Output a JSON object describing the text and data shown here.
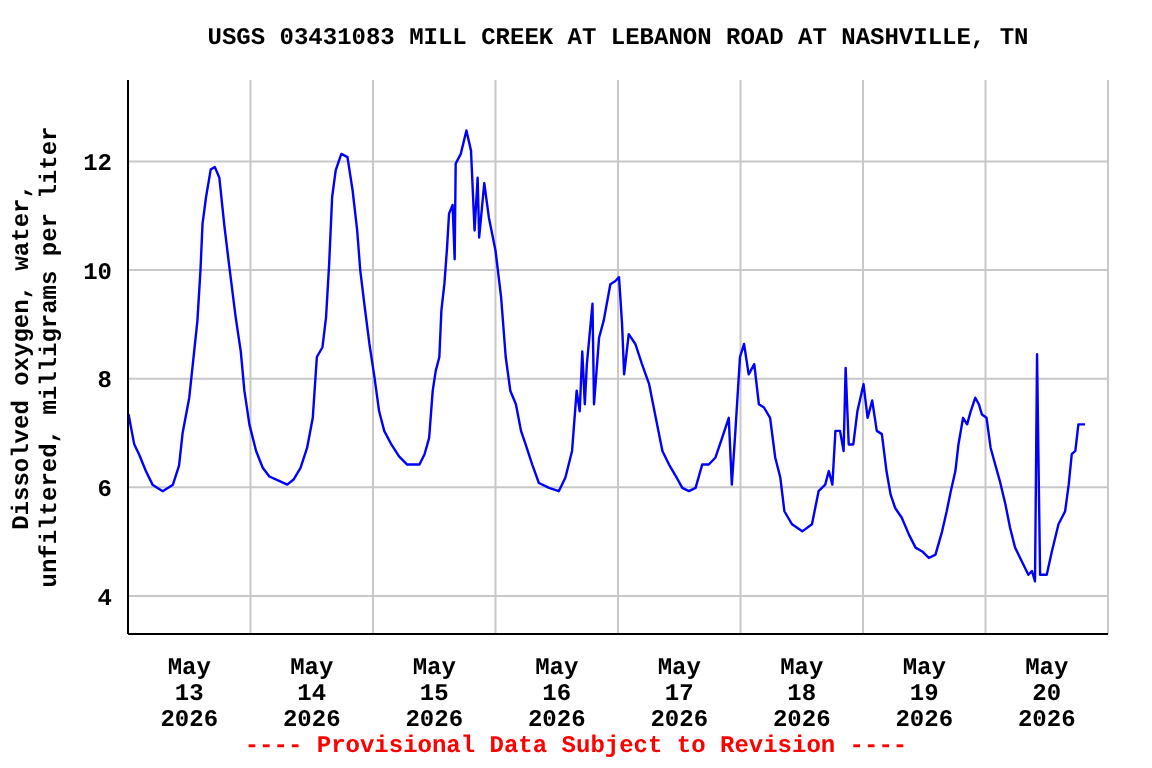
{
  "chart_data": {
    "type": "line",
    "title": "USGS 03431083 MILL CREEK AT LEBANON ROAD AT NASHVILLE, TN",
    "ylabel": "Dissolved oxygen, water, unfiltered, milligrams per liter",
    "annotations": [
      "---- Provisional Data Subject to Revision ----"
    ],
    "x": [
      "2026-05-13T00:06",
      "2026-05-13T01:12",
      "2026-05-13T02:12",
      "2026-05-13T03:30",
      "2026-05-13T04:48",
      "2026-05-13T06:48",
      "2026-05-13T08:48",
      "2026-05-13T10:00",
      "2026-05-13T10:42",
      "2026-05-13T12:00",
      "2026-05-13T12:42",
      "2026-05-13T13:36",
      "2026-05-13T14:12",
      "2026-05-13T14:36",
      "2026-05-13T15:18",
      "2026-05-13T16:12",
      "2026-05-13T17:00",
      "2026-05-13T17:54",
      "2026-05-13T18:54",
      "2026-05-13T19:48",
      "2026-05-13T21:06",
      "2026-05-13T22:06",
      "2026-05-13T22:48",
      "2026-05-13T23:48",
      "2026-05-14T01:06",
      "2026-05-14T02:24",
      "2026-05-14T03:42",
      "2026-05-14T05:36",
      "2026-05-14T07:12",
      "2026-05-14T08:30",
      "2026-05-14T09:48",
      "2026-05-14T11:06",
      "2026-05-14T12:12",
      "2026-05-14T13:00",
      "2026-05-14T14:06",
      "2026-05-14T14:48",
      "2026-05-14T15:24",
      "2026-05-14T16:00",
      "2026-05-14T16:42",
      "2026-05-14T17:48",
      "2026-05-14T19:00",
      "2026-05-14T20:00",
      "2026-05-14T20:54",
      "2026-05-14T21:30",
      "2026-05-14T22:18",
      "2026-05-14T23:18",
      "2026-05-15T00:18",
      "2026-05-15T01:12",
      "2026-05-15T02:12",
      "2026-05-15T03:36",
      "2026-05-15T05:06",
      "2026-05-15T06:42",
      "2026-05-15T09:06",
      "2026-05-15T10:06",
      "2026-05-15T11:00",
      "2026-05-15T11:42",
      "2026-05-15T12:18",
      "2026-05-15T13:00",
      "2026-05-15T13:24",
      "2026-05-15T14:00",
      "2026-05-15T14:30",
      "2026-05-15T14:54",
      "2026-05-15T15:36",
      "2026-05-15T16:00",
      "2026-05-15T16:12",
      "2026-05-15T17:12",
      "2026-05-15T18:18",
      "2026-05-15T19:12",
      "2026-05-15T19:54",
      "2026-05-15T20:30",
      "2026-05-15T20:48",
      "2026-05-15T21:48",
      "2026-05-15T22:42",
      "2026-05-16T00:00",
      "2026-05-16T01:06",
      "2026-05-16T02:00",
      "2026-05-16T02:54",
      "2026-05-16T04:00",
      "2026-05-16T05:00",
      "2026-05-16T05:54",
      "2026-05-16T07:12",
      "2026-05-16T08:30",
      "2026-05-16T10:30",
      "2026-05-16T12:24",
      "2026-05-16T13:42",
      "2026-05-16T15:00",
      "2026-05-16T15:54",
      "2026-05-16T16:30",
      "2026-05-16T17:00",
      "2026-05-16T17:30",
      "2026-05-16T17:54",
      "2026-05-16T19:00",
      "2026-05-16T19:18",
      "2026-05-16T20:18",
      "2026-05-16T21:12",
      "2026-05-16T22:30",
      "2026-05-16T23:30",
      "2026-05-17T00:12",
      "2026-05-17T00:48",
      "2026-05-17T01:12",
      "2026-05-17T02:06",
      "2026-05-17T03:24",
      "2026-05-17T04:42",
      "2026-05-17T06:06",
      "2026-05-17T07:24",
      "2026-05-17T08:42",
      "2026-05-17T10:00",
      "2026-05-17T11:18",
      "2026-05-17T12:36",
      "2026-05-17T13:54",
      "2026-05-17T15:12",
      "2026-05-17T16:30",
      "2026-05-17T17:48",
      "2026-05-17T19:06",
      "2026-05-17T20:24",
      "2026-05-17T21:42",
      "2026-05-17T22:18",
      "2026-05-17T23:00",
      "2026-05-17T23:54",
      "2026-05-18T00:42",
      "2026-05-18T01:36",
      "2026-05-18T02:42",
      "2026-05-18T03:36",
      "2026-05-18T04:36",
      "2026-05-18T05:48",
      "2026-05-18T06:48",
      "2026-05-18T07:48",
      "2026-05-18T08:36",
      "2026-05-18T10:06",
      "2026-05-18T12:06",
      "2026-05-18T14:00",
      "2026-05-18T15:18",
      "2026-05-18T16:36",
      "2026-05-18T17:18",
      "2026-05-18T18:00",
      "2026-05-18T18:36",
      "2026-05-18T19:30",
      "2026-05-18T20:12",
      "2026-05-18T20:36",
      "2026-05-18T21:12",
      "2026-05-18T22:06",
      "2026-05-18T22:54",
      "2026-05-19T00:06",
      "2026-05-19T00:54",
      "2026-05-19T01:48",
      "2026-05-19T02:42",
      "2026-05-19T03:42",
      "2026-05-19T04:36",
      "2026-05-19T05:24",
      "2026-05-19T06:18",
      "2026-05-19T07:36",
      "2026-05-19T09:00",
      "2026-05-19T10:18",
      "2026-05-19T11:36",
      "2026-05-19T12:54",
      "2026-05-19T14:12",
      "2026-05-19T15:30",
      "2026-05-19T16:24",
      "2026-05-19T17:12",
      "2026-05-19T18:06",
      "2026-05-19T18:42",
      "2026-05-19T19:36",
      "2026-05-19T20:24",
      "2026-05-19T21:06",
      "2026-05-19T22:00",
      "2026-05-19T22:42",
      "2026-05-19T23:18",
      "2026-05-20T00:12",
      "2026-05-20T01:00",
      "2026-05-20T01:54",
      "2026-05-20T02:48",
      "2026-05-20T03:54",
      "2026-05-20T04:48",
      "2026-05-20T05:48",
      "2026-05-20T07:06",
      "2026-05-20T08:24",
      "2026-05-20T09:06",
      "2026-05-20T09:42",
      "2026-05-20T10:06",
      "2026-05-20T10:24",
      "2026-05-20T10:42",
      "2026-05-20T12:00",
      "2026-05-20T13:00",
      "2026-05-20T14:18",
      "2026-05-20T15:36",
      "2026-05-20T16:18",
      "2026-05-20T16:54",
      "2026-05-20T17:36",
      "2026-05-20T18:12",
      "2026-05-20T19:30"
    ],
    "series": [
      {
        "color": "#0000ff",
        "values": [
          7.35,
          6.8,
          6.6,
          6.3,
          6.05,
          5.93,
          6.05,
          6.4,
          7.0,
          7.65,
          8.27,
          9.07,
          10.0,
          10.85,
          11.35,
          11.85,
          11.9,
          11.7,
          10.8,
          10.1,
          9.13,
          8.5,
          7.78,
          7.15,
          6.67,
          6.36,
          6.2,
          6.12,
          6.05,
          6.15,
          6.36,
          6.73,
          7.28,
          8.4,
          8.58,
          9.13,
          10.1,
          11.35,
          11.84,
          12.14,
          12.08,
          11.47,
          10.73,
          10.0,
          9.38,
          8.64,
          8.02,
          7.4,
          7.04,
          6.79,
          6.57,
          6.42,
          6.42,
          6.61,
          6.91,
          7.78,
          8.15,
          8.4,
          9.26,
          9.76,
          10.4,
          11.04,
          11.2,
          10.2,
          11.96,
          12.14,
          12.57,
          12.2,
          10.73,
          11.7,
          10.6,
          11.6,
          10.97,
          10.36,
          9.5,
          8.4,
          7.78,
          7.53,
          7.04,
          6.79,
          6.42,
          6.08,
          5.99,
          5.93,
          6.18,
          6.67,
          7.78,
          7.4,
          8.5,
          7.53,
          8.27,
          9.38,
          7.53,
          8.76,
          9.07,
          9.74,
          9.8,
          9.87,
          9.0,
          8.08,
          8.82,
          8.64,
          8.27,
          7.9,
          7.28,
          6.67,
          6.42,
          6.21,
          5.99,
          5.93,
          5.99,
          6.42,
          6.42,
          6.55,
          6.91,
          7.28,
          6.05,
          7.04,
          8.4,
          8.64,
          8.08,
          8.27,
          7.53,
          7.47,
          7.28,
          6.55,
          6.18,
          5.56,
          5.32,
          5.19,
          5.32,
          5.93,
          6.05,
          6.3,
          6.05,
          7.04,
          7.04,
          6.67,
          8.2,
          6.79,
          6.79,
          7.4,
          7.9,
          7.28,
          7.6,
          7.04,
          6.98,
          6.3,
          5.87,
          5.62,
          5.44,
          5.13,
          4.89,
          4.82,
          4.7,
          4.76,
          5.19,
          5.56,
          5.93,
          6.3,
          6.79,
          7.28,
          7.16,
          7.4,
          7.65,
          7.53,
          7.34,
          7.28,
          6.73,
          6.42,
          6.12,
          5.69,
          5.26,
          4.89,
          4.64,
          4.39,
          4.46,
          4.27,
          8.45,
          6.36,
          4.39,
          4.39,
          4.82,
          5.32,
          5.56,
          6.05,
          6.61,
          6.67,
          7.16,
          7.16
        ]
      }
    ],
    "xlim": [
      "2026-05-13T00:00",
      "2026-05-21T00:00"
    ],
    "xticks": [
      {
        "value": "2026-05-13T00:00",
        "label": null
      },
      {
        "value": "2026-05-13T12:00",
        "label": "May 13 2026"
      },
      {
        "value": "2026-05-14T00:00",
        "label": null
      },
      {
        "value": "2026-05-14T12:00",
        "label": "May 14 2026"
      },
      {
        "value": "2026-05-15T00:00",
        "label": null
      },
      {
        "value": "2026-05-15T12:00",
        "label": "May 15 2026"
      },
      {
        "value": "2026-05-16T00:00",
        "label": null
      },
      {
        "value": "2026-05-16T12:00",
        "label": "May 16 2026"
      },
      {
        "value": "2026-05-17T00:00",
        "label": null
      },
      {
        "value": "2026-05-17T12:00",
        "label": "May 17 2026"
      },
      {
        "value": "2026-05-18T00:00",
        "label": null
      },
      {
        "value": "2026-05-18T12:00",
        "label": "May 18 2026"
      },
      {
        "value": "2026-05-19T00:00",
        "label": null
      },
      {
        "value": "2026-05-19T12:00",
        "label": "May 19 2026"
      },
      {
        "value": "2026-05-20T00:00",
        "label": null
      },
      {
        "value": "2026-05-20T12:00",
        "label": "May 20 2026"
      },
      {
        "value": "2026-05-21T00:00",
        "label": null
      }
    ],
    "ylim": [
      3.3,
      13.5
    ],
    "yticks": [
      4,
      6,
      8,
      10,
      12
    ],
    "grid": true,
    "marker": "none",
    "line_style": "solid"
  }
}
